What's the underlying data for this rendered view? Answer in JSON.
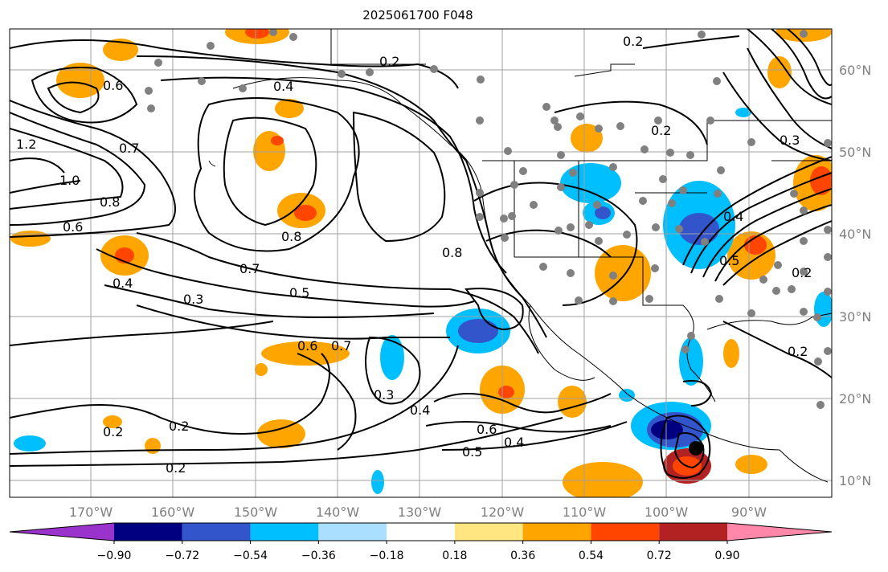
{
  "title": "2025061700 F048",
  "lat_labels": [
    "60°N",
    "50°N",
    "40°N",
    "30°N",
    "20°N",
    "10°N"
  ],
  "lon_labels": [
    "170°W",
    "160°W",
    "150°W",
    "140°W",
    "130°W",
    "120°W",
    "110°W",
    "100°W",
    "90°W"
  ],
  "colorbar": {
    "tick_labels": [
      "−0.90",
      "−0.72",
      "−0.54",
      "−0.36",
      "−0.18",
      "0.18",
      "0.36",
      "0.54",
      "0.72",
      "0.90"
    ],
    "colors": [
      "#9933cc",
      "#000080",
      "#3355cc",
      "#00bfff",
      "#aadfff",
      "#ffffff",
      "#ffe680",
      "#ffa500",
      "#ff4500",
      "#b22222",
      "#ff88aa"
    ]
  },
  "contour_labels": [
    "0.2",
    "0.2",
    "0.4",
    "0.6",
    "0.7",
    "1.2",
    "1.0",
    "0.8",
    "0.6",
    "0.8",
    "0.8",
    "0.7",
    "0.5",
    "0.4",
    "0.3",
    "0.6",
    "0.7",
    "0.3",
    "0.4",
    "0.6",
    "0.5",
    "0.4",
    "0.2",
    "0.2",
    "0.2",
    "0.2",
    "0.3",
    "0.4",
    "0.5",
    "0.2",
    "0.2"
  ],
  "colors": {
    "grid": "#a0a0a0",
    "contour": "#000000",
    "station": "#808080",
    "storm": "#000000"
  }
}
